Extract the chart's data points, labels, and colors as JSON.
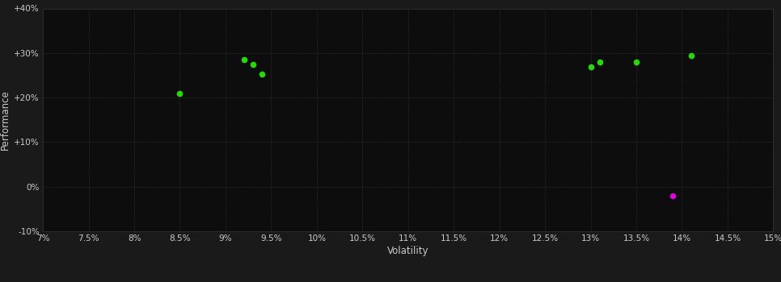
{
  "background_color": "#1a1a1a",
  "plot_bg_color": "#0d0d0d",
  "grid_color": "#3a3a3a",
  "grid_linestyle": ":",
  "xlabel": "Volatility",
  "ylabel": "Performance",
  "xlabel_color": "#cccccc",
  "ylabel_color": "#cccccc",
  "tick_color": "#cccccc",
  "xlim": [
    0.07,
    0.15
  ],
  "ylim": [
    -0.1,
    0.4
  ],
  "xticks": [
    0.07,
    0.075,
    0.08,
    0.085,
    0.09,
    0.095,
    0.1,
    0.105,
    0.11,
    0.115,
    0.12,
    0.125,
    0.13,
    0.135,
    0.14,
    0.145,
    0.15
  ],
  "yticks": [
    -0.1,
    0.0,
    0.1,
    0.2,
    0.3,
    0.4
  ],
  "green_points": [
    [
      0.085,
      0.21
    ],
    [
      0.092,
      0.285
    ],
    [
      0.093,
      0.275
    ],
    [
      0.094,
      0.252
    ],
    [
      0.13,
      0.268
    ],
    [
      0.131,
      0.28
    ],
    [
      0.135,
      0.279
    ],
    [
      0.141,
      0.295
    ]
  ],
  "magenta_points": [
    [
      0.139,
      -0.02
    ]
  ],
  "green_color": "#22dd00",
  "magenta_color": "#dd00dd",
  "marker_size": 20,
  "tick_fontsize": 7.5,
  "label_fontsize": 8.5
}
